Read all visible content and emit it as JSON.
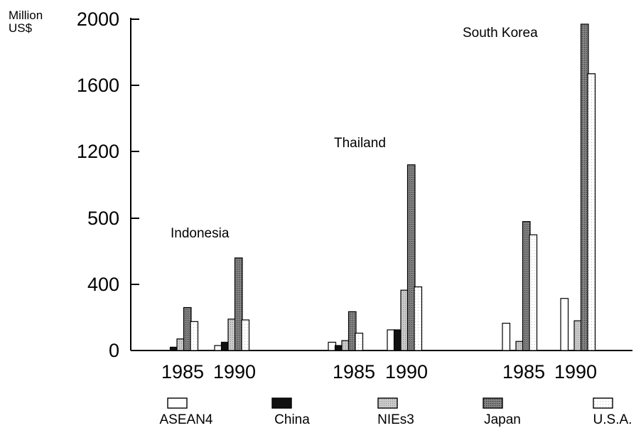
{
  "chart_data": {
    "type": "bar",
    "ylabel_line1": "Million",
    "ylabel_line2": "US$",
    "y_ticks": [
      "2000",
      "1600",
      "1200",
      "500",
      "400",
      "0"
    ],
    "countries": [
      {
        "name": "Indonesia",
        "years": [
          {
            "year": "1985",
            "values": [
              0,
              20,
              70,
              260,
              175
            ]
          },
          {
            "year": "1990",
            "values": [
              30,
              50,
              190,
              560,
              185
            ]
          }
        ]
      },
      {
        "name": "Thailand",
        "years": [
          {
            "year": "1985",
            "values": [
              50,
              30,
              60,
              235,
              105
            ]
          },
          {
            "year": "1990",
            "values": [
              125,
              125,
              365,
              1120,
              385
            ]
          }
        ]
      },
      {
        "name": "South Korea",
        "years": [
          {
            "year": "1985",
            "values": [
              165,
              0,
              55,
              780,
              700
            ]
          },
          {
            "year": "1990",
            "values": [
              315,
              0,
              180,
              1970,
              1670
            ]
          }
        ]
      }
    ],
    "series": [
      {
        "name": "ASEAN4",
        "color": "#ffffff"
      },
      {
        "name": "China",
        "color": "#111111"
      },
      {
        "name": "NIEs3",
        "color": "#b8b8b8"
      },
      {
        "name": "Japan",
        "color": "#6b6b6b"
      },
      {
        "name": "U.S.A.",
        "color": "#f4f4f4"
      }
    ],
    "ylim": [
      0,
      2000
    ],
    "legend_position": "bottom",
    "grid": false
  }
}
